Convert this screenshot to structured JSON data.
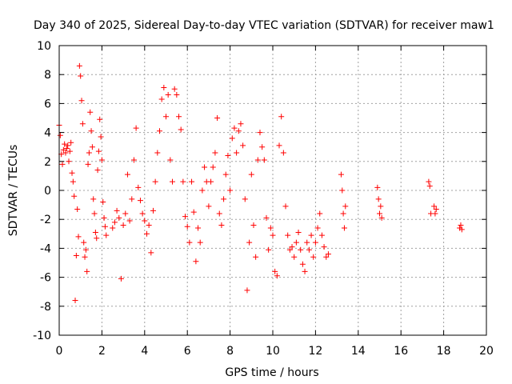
{
  "chart_data": {
    "type": "scatter",
    "title": "Day 340 of 2025, Sidereal Day-to-day VTEC variation (SDTVAR) for receiver maw1",
    "xlabel": "GPS time / hours",
    "ylabel": "SDTVAR / TECUs",
    "xlim": [
      0,
      20
    ],
    "ylim": [
      -10,
      10
    ],
    "xticks": [
      0,
      2,
      4,
      6,
      8,
      10,
      12,
      14,
      16,
      18,
      20
    ],
    "yticks": [
      -10,
      -8,
      -6,
      -4,
      -2,
      0,
      2,
      4,
      6,
      8,
      10
    ],
    "grid": true,
    "marker": "+",
    "color": "#ff0000",
    "series": [
      {
        "name": "SDTVAR",
        "x": [
          0.0,
          0.05,
          0.1,
          0.15,
          0.2,
          0.25,
          0.3,
          0.35,
          0.4,
          0.45,
          0.5,
          0.55,
          0.6,
          0.65,
          0.7,
          0.75,
          0.8,
          0.85,
          0.9,
          0.95,
          1.0,
          1.05,
          1.1,
          1.15,
          1.2,
          1.25,
          1.3,
          1.35,
          1.4,
          1.45,
          1.5,
          1.55,
          1.6,
          1.65,
          1.7,
          1.75,
          1.8,
          1.85,
          1.9,
          1.95,
          2.0,
          2.05,
          2.1,
          2.15,
          2.2,
          2.5,
          2.6,
          2.7,
          2.8,
          2.9,
          3.0,
          3.1,
          3.2,
          3.3,
          3.4,
          3.5,
          3.6,
          3.7,
          3.8,
          3.9,
          4.0,
          4.1,
          4.2,
          4.3,
          4.4,
          4.5,
          4.6,
          4.7,
          4.8,
          4.9,
          5.0,
          5.1,
          5.2,
          5.3,
          5.4,
          5.5,
          5.6,
          5.7,
          5.8,
          5.9,
          6.0,
          6.1,
          6.2,
          6.3,
          6.4,
          6.5,
          6.6,
          6.7,
          6.8,
          6.9,
          7.0,
          7.1,
          7.2,
          7.3,
          7.4,
          7.5,
          7.6,
          7.7,
          7.8,
          7.9,
          8.0,
          8.1,
          8.2,
          8.3,
          8.4,
          8.5,
          8.6,
          8.7,
          8.8,
          8.9,
          9.0,
          9.1,
          9.2,
          9.3,
          9.4,
          9.5,
          9.6,
          9.7,
          9.8,
          9.9,
          10.0,
          10.1,
          10.2,
          10.3,
          10.4,
          10.5,
          10.6,
          10.7,
          10.8,
          10.9,
          11.0,
          11.1,
          11.2,
          11.3,
          11.4,
          11.5,
          11.6,
          11.7,
          11.8,
          11.9,
          12.0,
          12.1,
          12.2,
          12.3,
          12.4,
          12.5,
          12.6,
          13.2,
          13.25,
          13.3,
          13.35,
          13.4,
          14.9,
          14.95,
          15.0,
          15.05,
          15.1,
          17.3,
          17.35,
          17.4,
          17.55,
          17.6,
          17.65,
          18.75,
          18.8,
          18.85
        ],
        "y": [
          4.5,
          3.8,
          2.5,
          1.8,
          2.8,
          3.2,
          2.6,
          2.9,
          3.1,
          2.0,
          2.7,
          3.3,
          1.2,
          0.6,
          -0.4,
          -7.6,
          -4.5,
          -1.3,
          -3.2,
          8.6,
          7.9,
          6.2,
          4.6,
          -3.6,
          -4.6,
          -4.1,
          -5.6,
          1.8,
          2.6,
          5.4,
          4.1,
          3.0,
          -0.6,
          -1.6,
          -2.9,
          -3.3,
          1.4,
          2.7,
          4.9,
          3.7,
          2.1,
          -0.8,
          -1.9,
          -2.5,
          -3.1,
          -2.6,
          -2.2,
          -1.4,
          -1.9,
          -6.1,
          -2.4,
          -1.6,
          1.1,
          -2.1,
          -0.6,
          2.1,
          4.3,
          0.2,
          -0.7,
          -1.6,
          -2.1,
          -3.0,
          -2.4,
          -4.3,
          -1.4,
          0.6,
          2.6,
          4.1,
          6.3,
          7.1,
          5.1,
          6.6,
          2.1,
          0.6,
          7.0,
          6.6,
          5.1,
          4.2,
          0.6,
          -1.8,
          -2.5,
          -3.6,
          0.6,
          -1.5,
          -4.9,
          -2.6,
          -3.6,
          0.0,
          1.6,
          0.6,
          -1.1,
          0.6,
          1.6,
          2.6,
          5.0,
          -1.6,
          -2.4,
          -0.6,
          1.1,
          2.4,
          0.0,
          3.6,
          4.3,
          2.6,
          4.1,
          4.6,
          3.1,
          -0.6,
          -6.9,
          -3.6,
          1.1,
          -2.4,
          -4.6,
          2.1,
          4.0,
          3.0,
          2.1,
          -1.9,
          -4.1,
          -2.6,
          -3.1,
          -5.6,
          -5.9,
          3.1,
          5.1,
          2.6,
          -1.1,
          -3.1,
          -4.1,
          -3.9,
          -4.6,
          -3.6,
          -2.9,
          -4.1,
          -5.1,
          -5.6,
          -3.6,
          -4.1,
          -3.1,
          -4.6,
          -3.6,
          -2.6,
          -1.6,
          -3.1,
          -3.9,
          -4.6,
          -4.4,
          1.1,
          0.0,
          -1.6,
          -2.6,
          -1.1,
          0.2,
          -0.6,
          -1.6,
          -1.1,
          -1.9,
          0.6,
          0.3,
          -1.6,
          -1.1,
          -1.6,
          -1.3,
          -2.6,
          -2.4,
          -2.7
        ]
      }
    ]
  }
}
